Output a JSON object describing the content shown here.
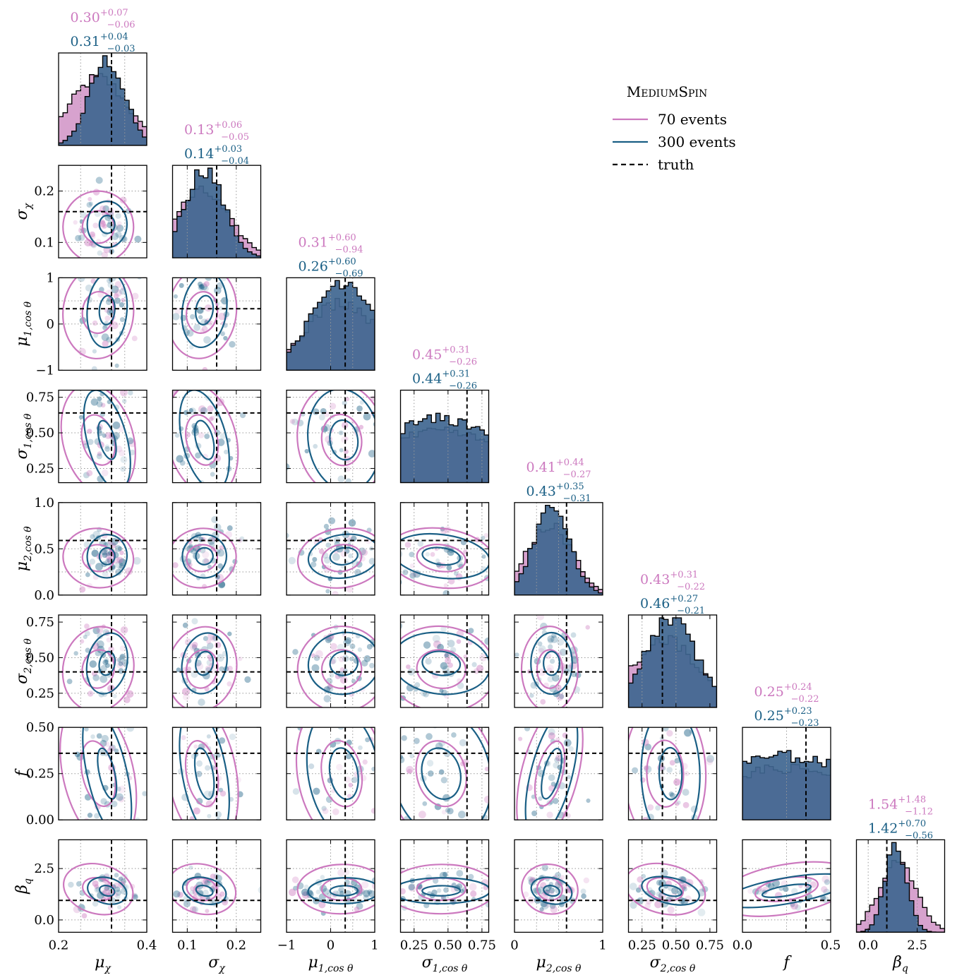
{
  "chart_data": {
    "type": "corner",
    "title": "",
    "legend": {
      "title": "MediumSpin",
      "placement": "top-right",
      "entries": [
        {
          "label": "70 events",
          "style": "solid",
          "color": "#cc79bf"
        },
        {
          "label": "300 events",
          "style": "solid",
          "color": "#1a5f85"
        },
        {
          "label": "truth",
          "style": "dashed",
          "color": "#000000"
        }
      ]
    },
    "colors": {
      "events_70": "#cc79bf",
      "events_300": "#1a5f85",
      "fill_300": "#3f6690",
      "fill_70": "#d7a2ce",
      "truth": "#000000"
    },
    "parameters": [
      {
        "key": "mu_chi",
        "label": "μ",
        "sub": "χ",
        "range": [
          0.2,
          0.4
        ],
        "ticks": [
          0.2,
          0.4
        ],
        "tick_labels": [
          "0.2",
          "0.4"
        ],
        "truth": 0.32,
        "grid": [
          0.25,
          0.35
        ],
        "s70": {
          "base": "0.30",
          "up": "+0.07",
          "lo": "−0.06"
        },
        "s300": {
          "base": "0.31",
          "up": "+0.04",
          "lo": "−0.03"
        },
        "median300": 0.31,
        "spread300": 0.025,
        "median70": 0.29,
        "spread70": 0.04
      },
      {
        "key": "sigma_chi",
        "label": "σ",
        "sub": "χ",
        "range": [
          0.07,
          0.25
        ],
        "ticks": [
          0.1,
          0.2
        ],
        "tick_labels": [
          "0.1",
          "0.2"
        ],
        "truth": 0.16,
        "grid": [
          0.1,
          0.2
        ],
        "s70": {
          "base": "0.13",
          "up": "+0.06",
          "lo": "−0.05"
        },
        "s300": {
          "base": "0.14",
          "up": "+0.03",
          "lo": "−0.04"
        },
        "median300": 0.135,
        "spread300": 0.025,
        "median70": 0.13,
        "spread70": 0.035
      },
      {
        "key": "mu_1",
        "label": "μ",
        "sub": "1,cos θ",
        "range": [
          -1,
          1
        ],
        "ticks": [
          -1,
          0,
          1
        ],
        "tick_labels": [
          "−1",
          "0",
          "1"
        ],
        "truth": 0.33,
        "grid": [
          0,
          0.5
        ],
        "s70": {
          "base": "0.31",
          "up": "+0.60",
          "lo": "−0.94"
        },
        "s300": {
          "base": "0.26",
          "up": "+0.60",
          "lo": "−0.69"
        },
        "median300": 0.3,
        "spread300": 0.45,
        "median70": 0.25,
        "spread70": 0.5
      },
      {
        "key": "sigma_1",
        "label": "σ",
        "sub": "1,cos θ",
        "range": [
          0.15,
          0.8
        ],
        "ticks": [
          0.25,
          0.5,
          0.75
        ],
        "tick_labels": [
          "0.25",
          "0.50",
          "0.75"
        ],
        "truth": 0.64,
        "grid": [
          0.25,
          0.5,
          0.75
        ],
        "s70": {
          "base": "0.45",
          "up": "+0.31",
          "lo": "−0.26"
        },
        "s300": {
          "base": "0.44",
          "up": "+0.31",
          "lo": "−0.26"
        },
        "median300": 0.45,
        "spread300": 0.2,
        "median70": 0.45,
        "spread70": 0.2
      },
      {
        "key": "mu_2",
        "label": "μ",
        "sub": "2,cos θ",
        "range": [
          0,
          1
        ],
        "ticks": [
          0,
          1
        ],
        "tick_labels": [
          "0",
          "1"
        ],
        "truth": 0.59,
        "grid": [
          0.25,
          0.5
        ],
        "s70": {
          "base": "0.41",
          "up": "+0.44",
          "lo": "−0.27"
        },
        "s300": {
          "base": "0.43",
          "up": "+0.35",
          "lo": "−0.31"
        },
        "median300": 0.42,
        "spread300": 0.13,
        "median70": 0.4,
        "spread70": 0.16
      },
      {
        "key": "sigma_2",
        "label": "σ",
        "sub": "2,cos θ",
        "range": [
          0.15,
          0.8
        ],
        "ticks": [
          0.25,
          0.5,
          0.75
        ],
        "tick_labels": [
          "0.25",
          "0.50",
          "0.75"
        ],
        "truth": 0.4,
        "grid": [
          0.25,
          0.5
        ],
        "s70": {
          "base": "0.43",
          "up": "+0.31",
          "lo": "−0.22"
        },
        "s300": {
          "base": "0.46",
          "up": "+0.27",
          "lo": "−0.21"
        },
        "median300": 0.46,
        "spread300": 0.12,
        "median70": 0.42,
        "spread70": 0.15
      },
      {
        "key": "f",
        "label": "f",
        "sub": "",
        "range": [
          0,
          0.5
        ],
        "ticks": [
          0,
          0.5
        ],
        "tick_labels": [
          "0.0",
          "0.5"
        ],
        "truth": 0.36,
        "grid": [
          0.25
        ],
        "s70": {
          "base": "0.25",
          "up": "+0.24",
          "lo": "−0.22"
        },
        "s300": {
          "base": "0.25",
          "up": "+0.23",
          "lo": "−0.23"
        },
        "median300": 0.25,
        "spread300": 0.2,
        "median70": 0.25,
        "spread70": 0.2
      },
      {
        "key": "beta_q",
        "label": "β",
        "sub": "q",
        "range": [
          -0.6,
          3.9
        ],
        "ticks": [
          0,
          2.5
        ],
        "tick_labels": [
          "0.0",
          "2.5"
        ],
        "truth": 0.95,
        "grid": [
          0,
          2.5
        ],
        "s70": {
          "base": "1.54",
          "up": "+1.48",
          "lo": "−1.12"
        },
        "s300": {
          "base": "1.42",
          "up": "+0.70",
          "lo": "−0.56"
        },
        "median300": 1.42,
        "spread300": 0.35,
        "median70": 1.5,
        "spread70": 0.6
      }
    ],
    "y_axis_ticks": {
      "sigma_chi": {
        "ticks": [
          0.1,
          0.2
        ],
        "tick_labels": [
          "0.1",
          "0.2"
        ]
      },
      "mu_1": {
        "ticks": [
          -1,
          0,
          1
        ],
        "tick_labels": [
          "−1",
          "0",
          "1"
        ]
      },
      "sigma_1": {
        "ticks": [
          0.25,
          0.5,
          0.75
        ],
        "tick_labels": [
          "0.25",
          "0.50",
          "0.75"
        ]
      },
      "mu_2": {
        "ticks": [
          0,
          0.5,
          1
        ],
        "tick_labels": [
          "0.0",
          "0.5",
          "1.0"
        ]
      },
      "sigma_2": {
        "ticks": [
          0.25,
          0.5,
          0.75
        ],
        "tick_labels": [
          "0.25",
          "0.50",
          "0.75"
        ]
      },
      "f": {
        "ticks": [
          0,
          0.25,
          0.5
        ],
        "tick_labels": [
          "0.00",
          "0.25",
          "0.50"
        ]
      },
      "beta_q": {
        "ticks": [
          0,
          2.5
        ],
        "tick_labels": [
          "0.0",
          "2.5"
        ]
      }
    }
  }
}
